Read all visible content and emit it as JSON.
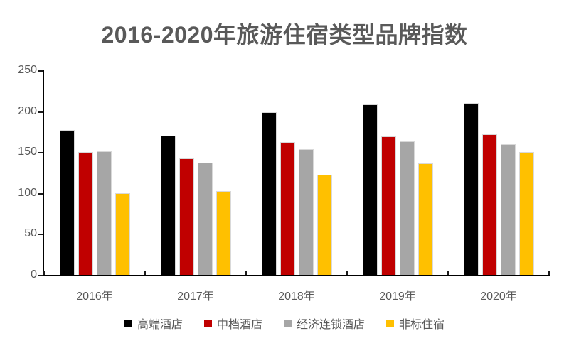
{
  "chart_data": {
    "type": "bar",
    "title": "2016-2020年旅游住宿类型品牌指数",
    "categories": [
      "2016年",
      "2017年",
      "2018年",
      "2019年",
      "2020年"
    ],
    "series": [
      {
        "name": "高端酒店",
        "color": "#000000",
        "values": [
          177,
          170,
          199,
          208,
          210
        ]
      },
      {
        "name": "中档酒店",
        "color": "#C00000",
        "values": [
          150,
          142,
          162,
          169,
          172
        ]
      },
      {
        "name": "经济连锁酒店",
        "color": "#A6A6A6",
        "values": [
          151,
          137,
          154,
          163,
          160
        ]
      },
      {
        "name": "非标住宿",
        "color": "#FFC000",
        "values": [
          100,
          102,
          122,
          136,
          150
        ]
      }
    ],
    "xlabel": "",
    "ylabel": "",
    "ylim": [
      0,
      250
    ],
    "yticks": [
      0,
      50,
      100,
      150,
      200,
      250
    ],
    "grid": false,
    "legend_position": "bottom",
    "colors": {
      "title_text": "#595959",
      "axis_text": "#595959",
      "axis_line": "#000000",
      "background": "#ffffff"
    }
  }
}
